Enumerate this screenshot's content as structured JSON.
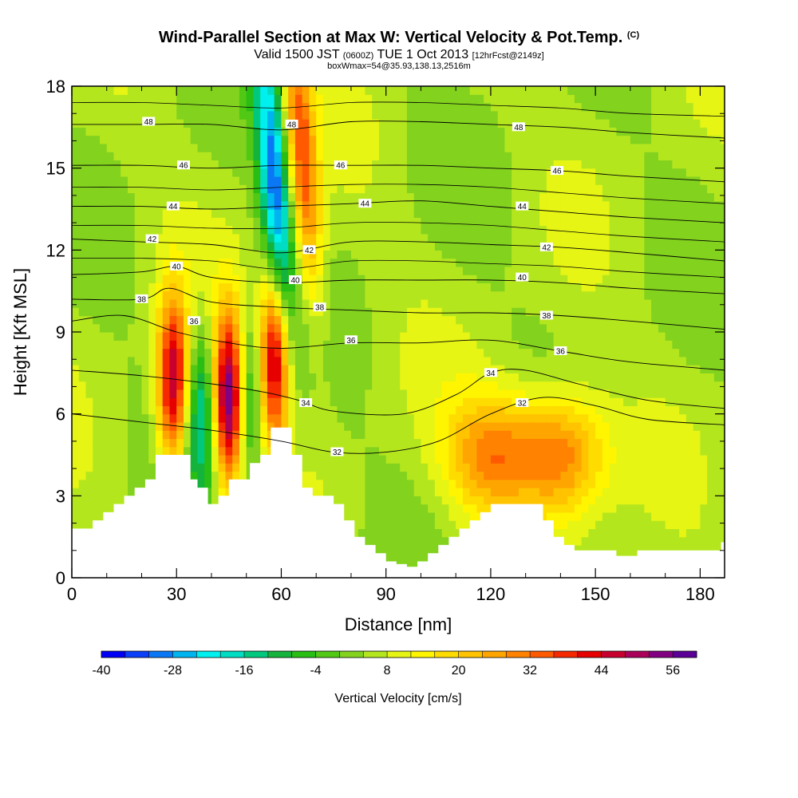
{
  "header": {
    "title_main": "Wind-Parallel Section at Max W: Vertical Velocity & Pot.Temp.",
    "title_mark": "(C)",
    "subtitle_a": "Valid 1500 JST",
    "subtitle_b": "(0600Z)",
    "subtitle_c": "TUE 1 Oct 2013",
    "subtitle_d": "[12hrFcst@2149z]",
    "subtitle2": "boxWmax=54@35.93,138.13,2516m"
  },
  "colorbar": {
    "label": "Vertical Velocity [cm/s]",
    "tick_labels": [
      "-40",
      "-28",
      "-16",
      "-4",
      "8",
      "20",
      "32",
      "44",
      "56"
    ],
    "levels": [
      -40,
      -36,
      -32,
      -28,
      -24,
      -20,
      -16,
      -12,
      -8,
      -4,
      0,
      4,
      8,
      12,
      16,
      20,
      24,
      28,
      32,
      36,
      40,
      44,
      48,
      52,
      56
    ],
    "colors": [
      "#0000f5",
      "#0a3ef8",
      "#0a78f5",
      "#00b4f0",
      "#00f0f0",
      "#00ddc2",
      "#00c87e",
      "#14b43c",
      "#28be14",
      "#50c814",
      "#82d21e",
      "#b4e61e",
      "#e6f514",
      "#fff500",
      "#ffdc00",
      "#ffc300",
      "#ffa500",
      "#ff8200",
      "#ff5a00",
      "#f52800",
      "#e60000",
      "#c8002d",
      "#aa005a",
      "#820082",
      "#5a0096"
    ]
  },
  "chart_data": {
    "type": "heatmap",
    "title": "Wind-Parallel Section at Max W: Vertical Velocity & Pot.Temp.",
    "xlabel": "Distance [nm]",
    "ylabel": "Height [Kft MSL]",
    "xlim": [
      0,
      187
    ],
    "ylim": [
      0,
      18
    ],
    "x_ticks": [
      0,
      30,
      60,
      90,
      120,
      150,
      180
    ],
    "y_ticks": [
      0,
      3,
      6,
      9,
      12,
      15,
      18
    ],
    "x_tick_labels": [
      "0",
      "30",
      "60",
      "90",
      "120",
      "150",
      "180"
    ],
    "y_tick_labels": [
      "0",
      "3",
      "6",
      "9",
      "12",
      "15",
      "18"
    ],
    "grid": false,
    "colorbar_units": "cm/s",
    "background_value": 5,
    "terrain_profile": {
      "x": [
        0,
        3,
        6,
        9,
        12,
        15,
        18,
        21,
        22,
        24,
        27,
        30,
        33,
        34,
        36,
        39,
        42,
        45,
        48,
        51,
        54,
        57,
        60,
        63,
        66,
        69,
        72,
        75,
        78,
        81,
        84,
        87,
        90,
        93,
        96,
        99,
        102,
        105,
        108,
        111,
        114,
        117,
        120,
        123,
        126,
        129,
        132,
        135,
        138,
        141,
        144,
        147,
        150,
        153,
        156,
        159,
        162,
        165,
        168,
        171,
        174,
        177,
        180,
        183,
        186,
        187
      ],
      "height": [
        1.8,
        1.8,
        2.1,
        2.4,
        2.7,
        3.0,
        3.3,
        3.6,
        3.6,
        4.5,
        4.5,
        4.5,
        4.5,
        3.6,
        3.3,
        2.7,
        3.0,
        3.6,
        3.6,
        4.2,
        4.5,
        5.5,
        5.5,
        4.5,
        3.3,
        3.0,
        3.0,
        2.7,
        2.1,
        1.5,
        1.2,
        0.9,
        0.6,
        0.5,
        0.4,
        0.6,
        0.9,
        1.2,
        1.5,
        1.8,
        2.1,
        2.4,
        2.7,
        2.7,
        2.7,
        2.7,
        2.7,
        2.1,
        1.5,
        1.2,
        1.0,
        1.0,
        1.0,
        1.0,
        0.8,
        0.8,
        1.0,
        1.0,
        1.0,
        1.0,
        1.0,
        1.0,
        1.0,
        1.0,
        1.3,
        1.3
      ]
    },
    "features": [
      {
        "kind": "updraft",
        "x": 29,
        "height": 7.2,
        "peak": 44
      },
      {
        "kind": "downdraft",
        "x": 37,
        "height": 6.0,
        "peak": -22
      },
      {
        "kind": "updraft",
        "x": 45,
        "height": 6.6,
        "peak": 52
      },
      {
        "kind": "downdraft",
        "x": 51,
        "height": 6.6,
        "peak": -20
      },
      {
        "kind": "updraft",
        "x": 58,
        "height": 8.0,
        "peak": 44
      },
      {
        "kind": "downdraft",
        "x": 58,
        "height": 14.5,
        "peak": -36
      },
      {
        "kind": "updraft",
        "x": 66,
        "height": 15.5,
        "peak": 30
      },
      {
        "kind": "updraft",
        "x": 120,
        "height": 4.5,
        "peak": 24
      },
      {
        "kind": "updraft",
        "x": 140,
        "height": 4.5,
        "peak": 28
      }
    ],
    "theta_contours": [
      {
        "label": "32",
        "x": [
          0,
          20,
          40,
          60,
          75,
          90,
          105,
          120,
          135,
          150,
          165,
          187
        ],
        "y": [
          6.0,
          5.7,
          5.4,
          5.0,
          4.6,
          4.6,
          5.0,
          6.0,
          6.6,
          6.3,
          5.8,
          5.6
        ],
        "label_at": [
          [
            76,
            4.6
          ],
          [
            129,
            6.4
          ]
        ]
      },
      {
        "label": "34",
        "x": [
          0,
          20,
          40,
          55,
          65,
          75,
          95,
          110,
          120,
          130,
          145,
          165,
          187
        ],
        "y": [
          7.6,
          7.4,
          7.1,
          6.8,
          6.5,
          6.1,
          6.0,
          6.7,
          7.5,
          7.6,
          7.1,
          6.5,
          6.2
        ],
        "label_at": [
          [
            67,
            6.4
          ],
          [
            120,
            7.5
          ]
        ]
      },
      {
        "label": "36",
        "x": [
          0,
          15,
          30,
          45,
          60,
          80,
          100,
          120,
          140,
          160,
          187
        ],
        "y": [
          9.4,
          9.6,
          9.0,
          8.6,
          8.4,
          8.6,
          8.6,
          8.7,
          8.3,
          7.9,
          7.6
        ],
        "label_at": [
          [
            35,
            9.4
          ],
          [
            80,
            8.7
          ],
          [
            140,
            8.3
          ]
        ]
      },
      {
        "label": "38",
        "x": [
          0,
          20,
          28,
          40,
          60,
          80,
          100,
          120,
          140,
          160,
          187
        ],
        "y": [
          10.2,
          10.2,
          10.6,
          10.1,
          9.9,
          9.8,
          9.7,
          9.7,
          9.6,
          9.4,
          9.1
        ],
        "label_at": [
          [
            20,
            10.2
          ],
          [
            71,
            9.9
          ],
          [
            136,
            9.6
          ]
        ]
      },
      {
        "label": "40",
        "x": [
          0,
          20,
          30,
          40,
          60,
          80,
          100,
          120,
          140,
          160,
          187
        ],
        "y": [
          11.1,
          11.2,
          11.4,
          11.0,
          10.8,
          10.9,
          10.9,
          10.9,
          10.8,
          10.6,
          10.4
        ],
        "label_at": [
          [
            30,
            11.4
          ],
          [
            64,
            10.9
          ],
          [
            129,
            11.0
          ]
        ]
      },
      {
        "label": "42",
        "x": [
          0,
          20,
          40,
          60,
          80,
          100,
          120,
          140,
          160,
          187
        ],
        "y": [
          12.4,
          12.3,
          12.2,
          11.9,
          12.3,
          12.3,
          12.2,
          12.1,
          11.9,
          11.6
        ],
        "label_at": [
          [
            23,
            12.4
          ],
          [
            68,
            12.0
          ],
          [
            136,
            12.1
          ]
        ]
      },
      {
        "label": "44",
        "x": [
          0,
          20,
          40,
          60,
          80,
          100,
          120,
          140,
          160,
          187
        ],
        "y": [
          13.6,
          13.6,
          13.5,
          13.6,
          13.7,
          13.8,
          13.6,
          13.4,
          13.2,
          13.0
        ],
        "label_at": [
          [
            29,
            13.6
          ],
          [
            84,
            13.7
          ],
          [
            129,
            13.6
          ]
        ]
      },
      {
        "label": "46",
        "x": [
          0,
          20,
          40,
          60,
          80,
          100,
          120,
          140,
          160,
          187
        ],
        "y": [
          15.1,
          15.1,
          15.0,
          15.1,
          15.1,
          15.1,
          15.0,
          14.9,
          14.7,
          14.5
        ],
        "label_at": [
          [
            32,
            15.1
          ],
          [
            77,
            15.1
          ],
          [
            139,
            14.9
          ]
        ]
      },
      {
        "label": "48",
        "x": [
          0,
          20,
          40,
          60,
          80,
          100,
          120,
          140,
          160,
          187
        ],
        "y": [
          16.6,
          16.6,
          16.6,
          16.4,
          16.7,
          16.7,
          16.6,
          16.5,
          16.3,
          16.1
        ],
        "label_at": [
          [
            22,
            16.7
          ],
          [
            63,
            16.6
          ],
          [
            128,
            16.5
          ]
        ]
      }
    ],
    "extra_contour_lines": [
      {
        "x": [
          0,
          20,
          40,
          60,
          80,
          100,
          120,
          140,
          160,
          187
        ],
        "y": [
          17.4,
          17.4,
          17.3,
          17.2,
          17.4,
          17.4,
          17.3,
          17.2,
          17.0,
          16.9
        ]
      },
      {
        "x": [
          0,
          20,
          40,
          60,
          80,
          100,
          120,
          140,
          160,
          187
        ],
        "y": [
          14.3,
          14.3,
          14.2,
          14.3,
          14.4,
          14.4,
          14.3,
          14.1,
          13.9,
          13.7
        ]
      },
      {
        "x": [
          0,
          20,
          40,
          60,
          80,
          100,
          120,
          140,
          160,
          187
        ],
        "y": [
          12.9,
          12.9,
          12.8,
          12.8,
          13.0,
          13.0,
          12.9,
          12.7,
          12.5,
          12.3
        ]
      },
      {
        "x": [
          0,
          20,
          40,
          60,
          80,
          100,
          120,
          140,
          160,
          187
        ],
        "y": [
          11.7,
          11.7,
          11.6,
          11.3,
          11.6,
          11.6,
          11.5,
          11.4,
          11.2,
          11.0
        ]
      }
    ]
  }
}
